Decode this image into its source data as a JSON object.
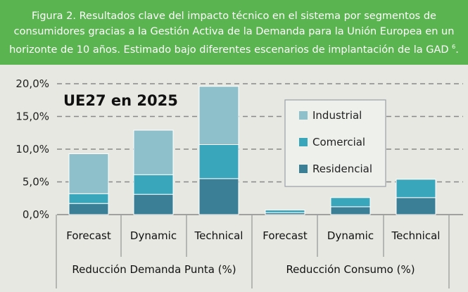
{
  "header": {
    "caption": "Figura 2. Resultados clave del impacto técnico en el sistema por segmentos de consumidores gracias a la Gestión Activa de la Demanda para la Unión Europea en un horizonte de 10 años. Estimado bajo diferentes escenarios de implantación de la GAD",
    "footnote": "6"
  },
  "chart_data": {
    "type": "bar",
    "stacked": true,
    "title": "UE27 en 2025",
    "yticks": [
      "20,0%",
      "15,0%",
      "10,0%",
      "5,0%",
      "0,0%"
    ],
    "ylim": [
      0,
      20
    ],
    "grid": "dashed horizontal",
    "categories": [
      "Forecast",
      "Dynamic",
      "Technical",
      "Forecast",
      "Dynamic",
      "Technical"
    ],
    "groups": [
      "Reducción Demanda Punta (%)",
      "Reducción Consumo (%)"
    ],
    "series": [
      {
        "name": "Residencial",
        "color": "#3a7f95",
        "values": [
          1.7,
          3.1,
          5.5,
          0.3,
          1.2,
          2.6
        ]
      },
      {
        "name": "Comercial",
        "color": "#3aa6bb",
        "values": [
          1.5,
          3.0,
          5.2,
          0.4,
          1.4,
          2.8
        ]
      },
      {
        "name": "Industrial",
        "color": "#8dc0cb",
        "values": [
          6.1,
          6.8,
          8.9,
          0.0,
          0.0,
          0.0
        ]
      }
    ],
    "legend": {
      "position": "top-right",
      "order": [
        "Industrial",
        "Comercial",
        "Residencial"
      ]
    }
  }
}
